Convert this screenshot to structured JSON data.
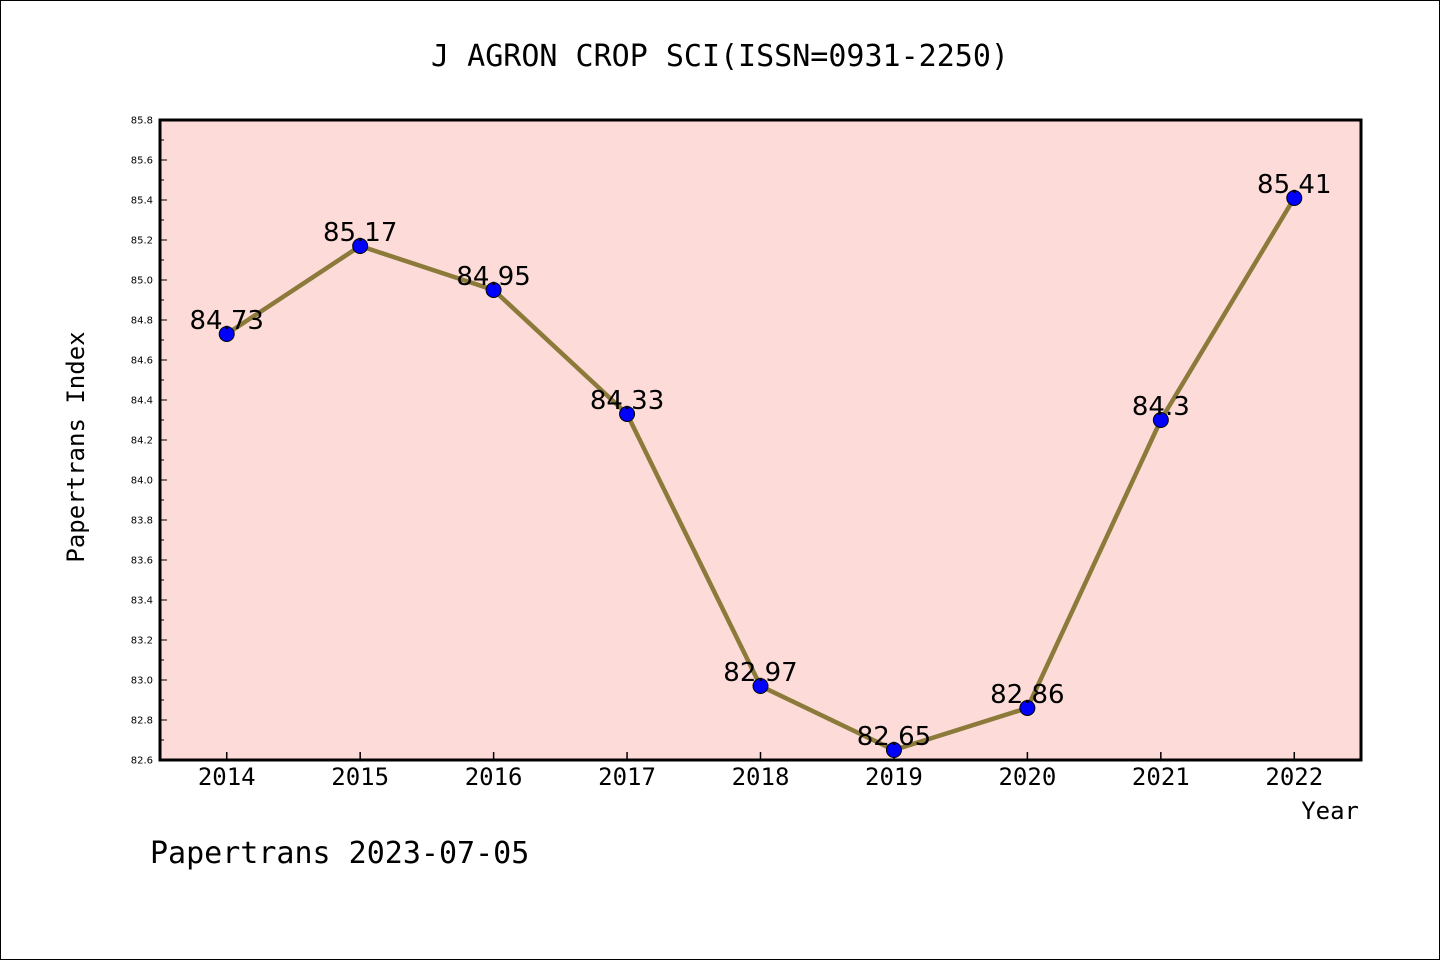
{
  "chart_data": {
    "type": "line",
    "title": "J AGRON CROP SCI(ISSN=0931-2250)",
    "xlabel": "Year",
    "ylabel": "Papertrans Index",
    "categories": [
      "2014",
      "2015",
      "2016",
      "2017",
      "2018",
      "2019",
      "2020",
      "2021",
      "2022"
    ],
    "series": [
      {
        "values": [
          84.73,
          85.17,
          84.95,
          84.33,
          82.97,
          82.65,
          82.86,
          84.3,
          85.41
        ],
        "labels": [
          "84.73",
          "85.17",
          "84.95",
          "84.33",
          "82.97",
          "82.65",
          "82.86",
          "84.3",
          "85.41"
        ]
      }
    ],
    "ylim": [
      82.6,
      85.8
    ],
    "yticks": [
      "82.6",
      "82.8",
      "83.0",
      "83.2",
      "83.4",
      "83.6",
      "83.8",
      "84.0",
      "84.2",
      "84.4",
      "84.6",
      "84.8",
      "85.0",
      "85.2",
      "85.4",
      "85.6",
      "85.8"
    ],
    "grid": false,
    "colors": {
      "plot_background": "#fddbd9",
      "line": "#8c7a3a",
      "marker": "#0000ff"
    }
  },
  "footer": "Papertrans 2023-07-05"
}
